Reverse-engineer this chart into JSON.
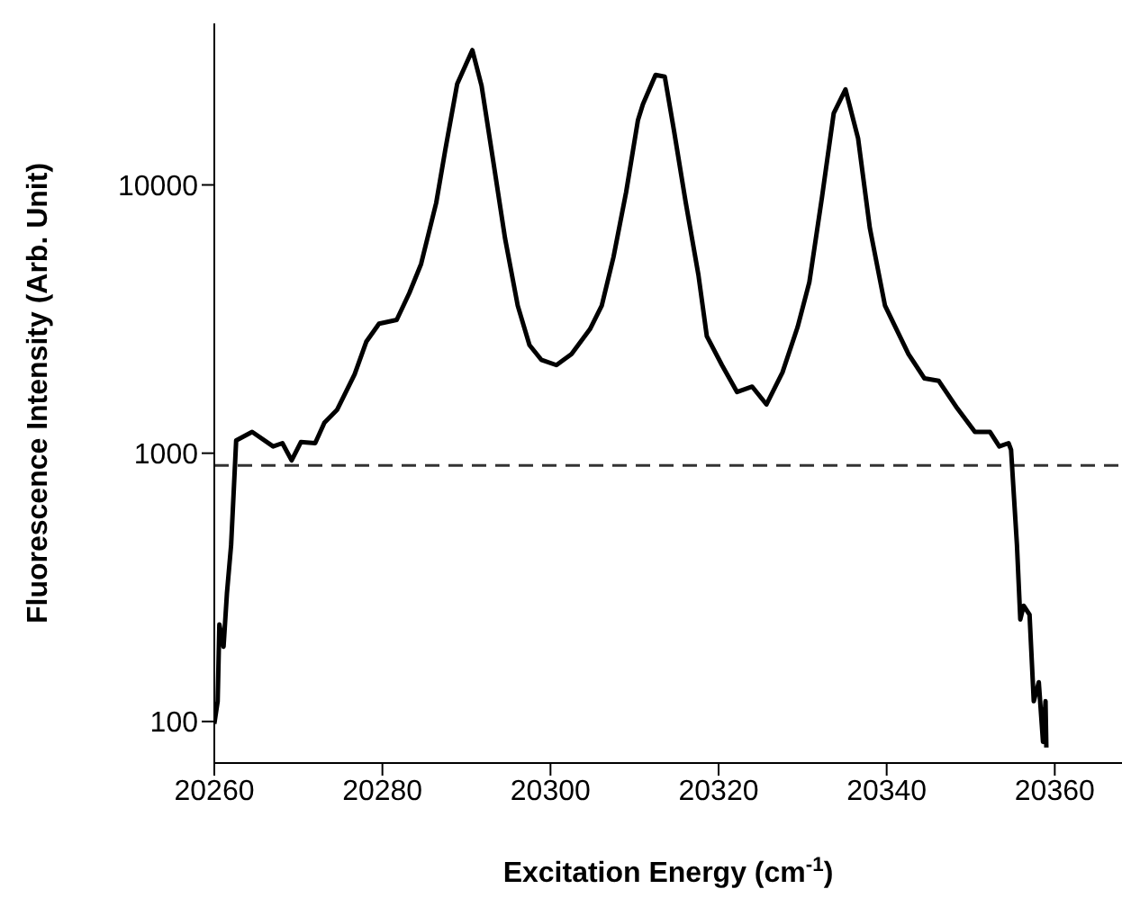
{
  "chart_data": {
    "type": "line",
    "xlabel": "Excitation Energy (cm$^{-1}$)",
    "ylabel": "Fluorescence Intensity (Arb. Unit)",
    "xlim": [
      20260,
      20368
    ],
    "xticks": [
      20260,
      20280,
      20300,
      20320,
      20340,
      20360
    ],
    "ylim": [
      70,
      40000
    ],
    "yticks": [
      100,
      1000,
      10000
    ],
    "log": "y",
    "marker": "none",
    "line_style": "solid",
    "ref_lines": [
      {
        "axis": "y",
        "value": 900,
        "line_style": "dashed",
        "color": "#333333"
      }
    ],
    "series": [
      {
        "color": "#000000",
        "x": [
          20260,
          20260.4,
          20260.6,
          20261.1,
          20261.5,
          20262,
          20262.6,
          20264.5,
          20267,
          20268.1,
          20269.2,
          20270.3,
          20272,
          20273.1,
          20274.6,
          20276.7,
          20278.1,
          20279.6,
          20281.7,
          20283.2,
          20284.6,
          20286.4,
          20287.5,
          20288.9,
          20290.7,
          20291.8,
          20293.2,
          20294.6,
          20296.1,
          20297.5,
          20298.9,
          20300.7,
          20302.5,
          20304.7,
          20306.1,
          20307.5,
          20309,
          20310.4,
          20311,
          20312.5,
          20313.6,
          20314.7,
          20316.1,
          20317.6,
          20318.6,
          20320.4,
          20322.2,
          20324,
          20325.7,
          20327.6,
          20329.4,
          20330.8,
          20332.3,
          20333.7,
          20335.1,
          20336.6,
          20338,
          20339.8,
          20342.6,
          20344.5,
          20346.2,
          20348.4,
          20350.5,
          20352.3,
          20353.4,
          20354.5,
          20354.8,
          20355.5,
          20355.9,
          20356.3,
          20357,
          20357.5,
          20358.1,
          20358.6,
          20358.9,
          20359
        ],
        "values": [
          98,
          119,
          230,
          190,
          300,
          455,
          1115,
          1200,
          1060,
          1090,
          940,
          1100,
          1090,
          1300,
          1450,
          1970,
          2610,
          3040,
          3140,
          3950,
          5070,
          8570,
          13600,
          23800,
          31800,
          23400,
          12200,
          6300,
          3550,
          2530,
          2230,
          2130,
          2340,
          2900,
          3550,
          5390,
          9400,
          17400,
          20000,
          25700,
          25300,
          15900,
          8570,
          4620,
          2730,
          2130,
          1690,
          1770,
          1520,
          2000,
          2950,
          4340,
          8980,
          18500,
          22700,
          14900,
          6900,
          3550,
          2340,
          1900,
          1860,
          1470,
          1200,
          1200,
          1060,
          1090,
          1030,
          455,
          240,
          270,
          250,
          119,
          140,
          84,
          119,
          80
        ]
      }
    ]
  }
}
